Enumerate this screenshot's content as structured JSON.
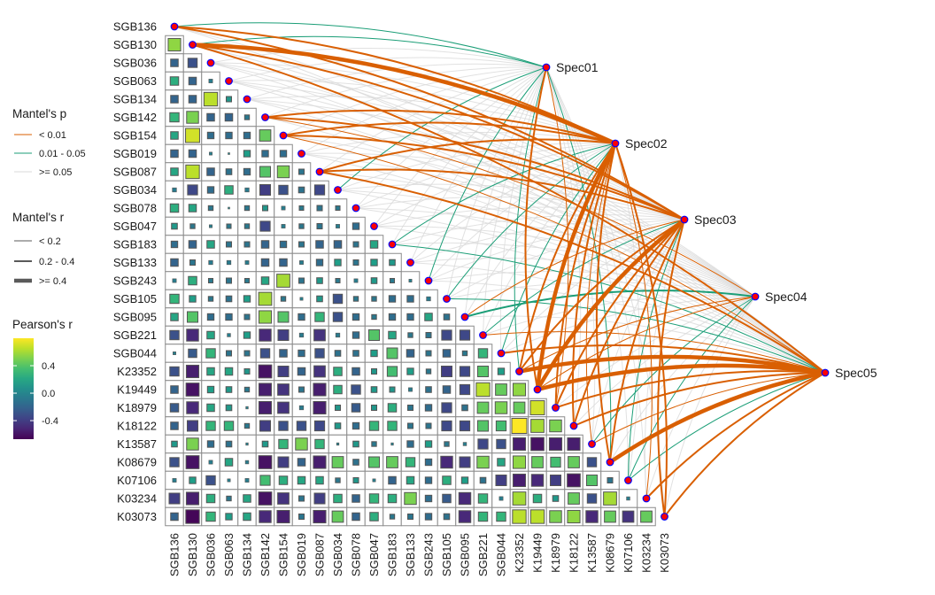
{
  "chart_data": {
    "type": "heatmap",
    "title": "",
    "variables": [
      "SGB136",
      "SGB130",
      "SGB036",
      "SGB063",
      "SGB134",
      "SGB142",
      "SGB154",
      "SGB019",
      "SGB087",
      "SGB034",
      "SGB078",
      "SGB047",
      "SGB183",
      "SGB133",
      "SGB243",
      "SGB105",
      "SGB095",
      "SGB221",
      "SGB044",
      "K23352",
      "K19449",
      "K18979",
      "K18122",
      "K13587",
      "K08679",
      "K07106",
      "K03234",
      "K03073"
    ],
    "pearson_r_lower_triangle": [
      [],
      [
        0.55
      ],
      [
        -0.2,
        -0.3
      ],
      [
        0.25,
        -0.2,
        -0.05
      ],
      [
        -0.2,
        -0.2,
        0.65,
        0.1
      ],
      [
        0.3,
        0.5,
        -0.2,
        -0.2,
        -0.08
      ],
      [
        0.2,
        0.7,
        -0.15,
        -0.15,
        -0.15,
        0.45
      ],
      [
        -0.2,
        -0.2,
        -0.03,
        0.01,
        0.15,
        -0.15,
        -0.15
      ],
      [
        0.2,
        0.65,
        -0.2,
        -0.12,
        -0.15,
        0.4,
        0.5,
        -0.1
      ],
      [
        -0.06,
        -0.35,
        -0.15,
        0.25,
        -0.06,
        -0.4,
        -0.3,
        -0.12,
        -0.35
      ],
      [
        0.25,
        0.2,
        -0.08,
        0.01,
        -0.08,
        0.1,
        -0.05,
        -0.07,
        -0.1,
        -0.07
      ],
      [
        0.12,
        -0.08,
        -0.03,
        -0.07,
        -0.08,
        -0.35,
        -0.05,
        -0.08,
        -0.1,
        -0.05,
        -0.15
      ],
      [
        -0.15,
        -0.2,
        0.2,
        -0.1,
        -0.1,
        -0.2,
        -0.15,
        -0.1,
        -0.2,
        -0.2,
        -0.1,
        0.2
      ],
      [
        -0.2,
        -0.1,
        -0.06,
        -0.06,
        -0.05,
        -0.2,
        -0.2,
        -0.05,
        -0.15,
        0.15,
        -0.1,
        0.15,
        0.12
      ],
      [
        -0.05,
        0.25,
        -0.07,
        -0.1,
        -0.07,
        0.2,
        0.6,
        -0.1,
        0.12,
        -0.07,
        -0.05,
        0.12,
        -0.07,
        -0.03
      ],
      [
        0.3,
        0.15,
        -0.08,
        -0.12,
        0.15,
        0.6,
        -0.08,
        -0.03,
        0.12,
        -0.3,
        -0.08,
        -0.08,
        -0.15,
        -0.15,
        -0.06
      ],
      [
        0.2,
        0.4,
        -0.15,
        -0.15,
        -0.1,
        0.55,
        0.4,
        -0.15,
        0.3,
        -0.3,
        -0.15,
        -0.08,
        -0.15,
        -0.15,
        0.2,
        -0.12
      ],
      [
        -0.3,
        -0.5,
        0.2,
        -0.04,
        0.15,
        -0.5,
        -0.4,
        -0.06,
        -0.45,
        -0.06,
        -0.15,
        0.4,
        0.2,
        -0.08,
        -0.1,
        -0.35,
        -0.35
      ],
      [
        -0.03,
        -0.25,
        0.3,
        -0.1,
        -0.1,
        -0.3,
        -0.2,
        -0.15,
        -0.3,
        -0.12,
        -0.12,
        0.15,
        0.4,
        -0.2,
        -0.1,
        -0.2,
        -0.08,
        0.3
      ],
      [
        -0.3,
        -0.55,
        0.2,
        0.2,
        0.1,
        -0.6,
        -0.4,
        -0.2,
        -0.45,
        0.25,
        -0.2,
        0.1,
        0.35,
        0.15,
        -0.08,
        -0.4,
        -0.35,
        0.4,
        0.15
      ],
      [
        -0.2,
        -0.6,
        0.15,
        0.12,
        -0.08,
        -0.55,
        -0.45,
        -0.1,
        -0.55,
        0.25,
        -0.3,
        0.12,
        0.1,
        -0.05,
        -0.12,
        -0.2,
        -0.35,
        0.65,
        0.45,
        0.55
      ],
      [
        -0.25,
        -0.5,
        0.2,
        0.12,
        -0.02,
        -0.55,
        -0.45,
        -0.06,
        -0.55,
        0.1,
        -0.25,
        0.1,
        0.25,
        -0.1,
        -0.15,
        -0.35,
        -0.12,
        0.45,
        0.5,
        0.45,
        0.7
      ],
      [
        -0.2,
        -0.4,
        0.3,
        0.3,
        -0.08,
        -0.4,
        -0.3,
        -0.3,
        -0.35,
        0.12,
        -0.15,
        0.3,
        0.3,
        -0.1,
        -0.1,
        -0.35,
        -0.35,
        0.4,
        0.35,
        0.8,
        0.6,
        0.5
      ],
      [
        0.12,
        0.5,
        -0.15,
        -0.12,
        -0.02,
        0.12,
        0.3,
        0.5,
        0.3,
        -0.02,
        0.12,
        -0.08,
        -0.02,
        -0.15,
        0.15,
        -0.08,
        -0.04,
        -0.35,
        -0.3,
        -0.55,
        -0.6,
        -0.55,
        -0.55
      ],
      [
        -0.3,
        -0.6,
        -0.05,
        0.2,
        -0.04,
        -0.6,
        -0.4,
        -0.2,
        -0.55,
        0.45,
        -0.12,
        0.4,
        0.45,
        0.3,
        -0.15,
        -0.5,
        -0.4,
        0.5,
        0.2,
        0.55,
        0.45,
        0.35,
        0.45,
        -0.3
      ],
      [
        -0.05,
        0.15,
        -0.3,
        -0.03,
        -0.05,
        0.35,
        0.25,
        0.2,
        0.2,
        -0.08,
        0.1,
        -0.03,
        -0.2,
        0.2,
        -0.15,
        0.25,
        0.15,
        -0.12,
        -0.4,
        -0.55,
        -0.5,
        -0.4,
        -0.6,
        0.4,
        -0.1
      ],
      [
        -0.4,
        -0.55,
        0.25,
        -0.08,
        0.2,
        -0.6,
        -0.45,
        -0.1,
        -0.4,
        0.25,
        -0.2,
        0.3,
        0.25,
        0.5,
        -0.15,
        -0.25,
        -0.5,
        0.3,
        -0.05,
        0.6,
        0.25,
        0.12,
        0.45,
        -0.3,
        0.6,
        -0.04
      ],
      [
        -0.2,
        -0.65,
        0.3,
        0.15,
        0.2,
        -0.5,
        -0.55,
        -0.1,
        -0.55,
        0.45,
        -0.2,
        0.25,
        -0.08,
        -0.1,
        -0.15,
        -0.12,
        -0.5,
        0.3,
        0.3,
        0.65,
        0.65,
        0.5,
        0.55,
        -0.5,
        0.45,
        -0.45,
        0.45
      ]
    ],
    "specs": [
      "Spec01",
      "Spec02",
      "Spec03",
      "Spec04",
      "Spec05"
    ],
    "mantel_default": {
      "p": ">= 0.05",
      "r": "< 0.2"
    },
    "mantel_links": [
      {
        "spec": "Spec01",
        "env": "SGB136",
        "p": "0.01 - 0.05",
        "r": "< 0.2"
      },
      {
        "spec": "Spec01",
        "env": "SGB130",
        "p": "0.01 - 0.05",
        "r": "< 0.2"
      },
      {
        "spec": "Spec01",
        "env": "SGB034",
        "p": "0.01 - 0.05",
        "r": "< 0.2"
      },
      {
        "spec": "Spec01",
        "env": "SGB243",
        "p": "0.01 - 0.05",
        "r": "< 0.2"
      },
      {
        "spec": "Spec01",
        "env": "K23352",
        "p": "0.01 - 0.05",
        "r": "< 0.2"
      },
      {
        "spec": "Spec01",
        "env": "K19449",
        "p": "< 0.01",
        "r": "0.2 - 0.4"
      },
      {
        "spec": "Spec01",
        "env": "K18979",
        "p": "< 0.01",
        "r": "< 0.2"
      },
      {
        "spec": "Spec01",
        "env": "K08679",
        "p": "0.01 - 0.05",
        "r": "< 0.2"
      },
      {
        "spec": "Spec02",
        "env": "SGB136",
        "p": "< 0.01",
        "r": "0.2 - 0.4"
      },
      {
        "spec": "Spec02",
        "env": "SGB130",
        "p": "< 0.01",
        "r": ">= 0.4"
      },
      {
        "spec": "Spec02",
        "env": "SGB142",
        "p": "< 0.01",
        "r": "0.2 - 0.4"
      },
      {
        "spec": "Spec02",
        "env": "SGB154",
        "p": "< 0.01",
        "r": "0.2 - 0.4"
      },
      {
        "spec": "Spec02",
        "env": "SGB087",
        "p": "< 0.01",
        "r": "0.2 - 0.4"
      },
      {
        "spec": "Spec02",
        "env": "SGB183",
        "p": "0.01 - 0.05",
        "r": "< 0.2"
      },
      {
        "spec": "Spec02",
        "env": "SGB105",
        "p": "0.01 - 0.05",
        "r": "< 0.2"
      },
      {
        "spec": "Spec02",
        "env": "SGB044",
        "p": "0.01 - 0.05",
        "r": "< 0.2"
      },
      {
        "spec": "Spec02",
        "env": "K23352",
        "p": "< 0.01",
        "r": "0.2 - 0.4"
      },
      {
        "spec": "Spec02",
        "env": "K19449",
        "p": "< 0.01",
        "r": ">= 0.4"
      },
      {
        "spec": "Spec02",
        "env": "K18979",
        "p": "< 0.01",
        "r": "0.2 - 0.4"
      },
      {
        "spec": "Spec02",
        "env": "K18122",
        "p": "< 0.01",
        "r": "0.2 - 0.4"
      },
      {
        "spec": "Spec02",
        "env": "K13587",
        "p": "< 0.01",
        "r": "< 0.2"
      },
      {
        "spec": "Spec02",
        "env": "K08679",
        "p": "< 0.01",
        "r": "0.2 - 0.4"
      },
      {
        "spec": "Spec02",
        "env": "K03234",
        "p": "< 0.01",
        "r": "< 0.2"
      },
      {
        "spec": "Spec02",
        "env": "K03073",
        "p": "< 0.01",
        "r": "0.2 - 0.4"
      },
      {
        "spec": "Spec03",
        "env": "SGB136",
        "p": "< 0.01",
        "r": "0.2 - 0.4"
      },
      {
        "spec": "Spec03",
        "env": "SGB130",
        "p": "< 0.01",
        "r": "0.2 - 0.4"
      },
      {
        "spec": "Spec03",
        "env": "SGB142",
        "p": "< 0.01",
        "r": "0.2 - 0.4"
      },
      {
        "spec": "Spec03",
        "env": "SGB154",
        "p": "< 0.01",
        "r": "0.2 - 0.4"
      },
      {
        "spec": "Spec03",
        "env": "SGB087",
        "p": "< 0.01",
        "r": "0.2 - 0.4"
      },
      {
        "spec": "Spec03",
        "env": "SGB095",
        "p": "< 0.01",
        "r": "< 0.2"
      },
      {
        "spec": "Spec03",
        "env": "SGB221",
        "p": "0.01 - 0.05",
        "r": "< 0.2"
      },
      {
        "spec": "Spec03",
        "env": "K23352",
        "p": "< 0.01",
        "r": "0.2 - 0.4"
      },
      {
        "spec": "Spec03",
        "env": "K19449",
        "p": "< 0.01",
        "r": ">= 0.4"
      },
      {
        "spec": "Spec03",
        "env": "K18979",
        "p": "< 0.01",
        "r": "0.2 - 0.4"
      },
      {
        "spec": "Spec03",
        "env": "K18122",
        "p": "< 0.01",
        "r": "0.2 - 0.4"
      },
      {
        "spec": "Spec03",
        "env": "K08679",
        "p": "< 0.01",
        "r": "0.2 - 0.4"
      },
      {
        "spec": "Spec03",
        "env": "K07106",
        "p": "0.01 - 0.05",
        "r": "< 0.2"
      },
      {
        "spec": "Spec03",
        "env": "K03073",
        "p": "< 0.01",
        "r": "0.2 - 0.4"
      },
      {
        "spec": "Spec04",
        "env": "SGB142",
        "p": "< 0.01",
        "r": "< 0.2"
      },
      {
        "spec": "Spec04",
        "env": "SGB095",
        "p": "0.01 - 0.05",
        "r": "0.2 - 0.4"
      },
      {
        "spec": "Spec04",
        "env": "K23352",
        "p": "< 0.01",
        "r": "< 0.2"
      },
      {
        "spec": "Spec04",
        "env": "K19449",
        "p": "< 0.01",
        "r": "< 0.2"
      },
      {
        "spec": "Spec04",
        "env": "K13587",
        "p": "0.01 - 0.05",
        "r": "< 0.2"
      },
      {
        "spec": "Spec04",
        "env": "K07106",
        "p": "0.01 - 0.05",
        "r": "< 0.2"
      },
      {
        "spec": "Spec05",
        "env": "SGB130",
        "p": "< 0.01",
        "r": "0.2 - 0.4"
      },
      {
        "spec": "Spec05",
        "env": "SGB154",
        "p": "< 0.01",
        "r": "< 0.2"
      },
      {
        "spec": "Spec05",
        "env": "SGB087",
        "p": "< 0.01",
        "r": "0.2 - 0.4"
      },
      {
        "spec": "Spec05",
        "env": "SGB183",
        "p": "0.01 - 0.05",
        "r": "< 0.2"
      },
      {
        "spec": "Spec05",
        "env": "SGB105",
        "p": "0.01 - 0.05",
        "r": "< 0.2"
      },
      {
        "spec": "Spec05",
        "env": "SGB221",
        "p": "< 0.01",
        "r": "< 0.2"
      },
      {
        "spec": "Spec05",
        "env": "SGB044",
        "p": "< 0.01",
        "r": "0.2 - 0.4"
      },
      {
        "spec": "Spec05",
        "env": "K23352",
        "p": "< 0.01",
        "r": ">= 0.4"
      },
      {
        "spec": "Spec05",
        "env": "K19449",
        "p": "< 0.01",
        "r": ">= 0.4"
      },
      {
        "spec": "Spec05",
        "env": "K18979",
        "p": "< 0.01",
        "r": "0.2 - 0.4"
      },
      {
        "spec": "Spec05",
        "env": "K18122",
        "p": "< 0.01",
        "r": "0.2 - 0.4"
      },
      {
        "spec": "Spec05",
        "env": "K13587",
        "p": "< 0.01",
        "r": "< 0.2"
      },
      {
        "spec": "Spec05",
        "env": "K08679",
        "p": "< 0.01",
        "r": ">= 0.4"
      },
      {
        "spec": "Spec05",
        "env": "K07106",
        "p": "0.01 - 0.05",
        "r": "< 0.2"
      },
      {
        "spec": "Spec05",
        "env": "K03234",
        "p": "< 0.01",
        "r": "0.2 - 0.4"
      },
      {
        "spec": "Spec05",
        "env": "K03073",
        "p": "< 0.01",
        "r": "0.2 - 0.4"
      }
    ],
    "legend": {
      "mantel_p": {
        "title": "Mantel's p",
        "items": [
          "< 0.01",
          "0.01 - 0.05",
          ">= 0.05"
        ]
      },
      "mantel_r": {
        "title": "Mantel's r",
        "items": [
          "< 0.2",
          "0.2 - 0.4",
          ">= 0.4"
        ]
      },
      "pearson": {
        "title": "Pearson's r",
        "ticks": [
          "0.4",
          "0.0",
          "-0.4"
        ],
        "tick_values": [
          0.4,
          0.0,
          -0.4
        ],
        "range": [
          -0.67,
          0.8
        ]
      }
    },
    "colors": {
      "p_lt_001": "#D95F02",
      "p_001_005": "#1B9E77",
      "p_ge_005": "#D9D9D9",
      "node_fill": "#FF0000",
      "node_stroke": "#0000FF",
      "grid": "#8C8C8C"
    }
  }
}
